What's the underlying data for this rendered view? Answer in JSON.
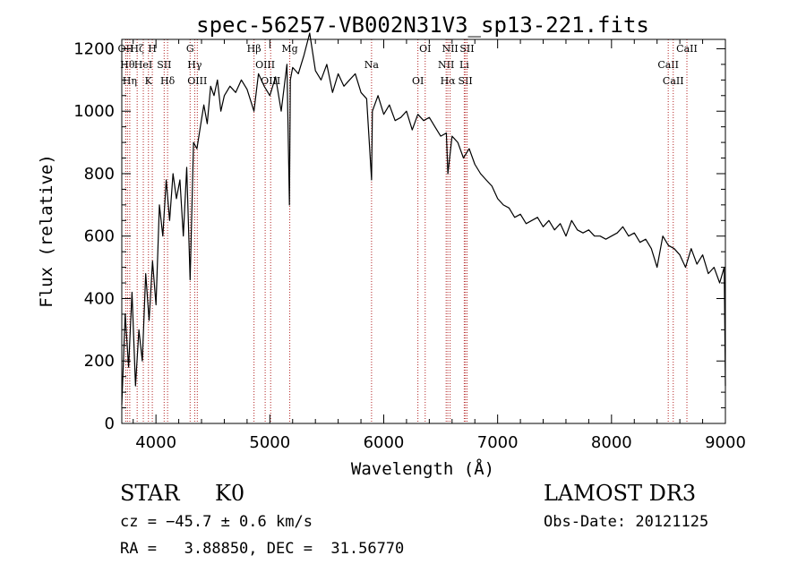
{
  "chart_data": {
    "type": "line",
    "title": "spec-56257-VB002N31V3_sp13-221.fits",
    "xlabel": "Wavelength (Å)",
    "ylabel": "Flux (relative)",
    "xlim": [
      3700,
      9000
    ],
    "ylim": [
      0,
      1230
    ],
    "xticks": [
      4000,
      5000,
      6000,
      7000,
      8000,
      9000
    ],
    "yticks": [
      0,
      200,
      400,
      600,
      800,
      1000,
      1200
    ],
    "grid": false,
    "line_color": "#000000",
    "marker_color": "#b22222",
    "series": [
      {
        "x": [
          3700,
          3730,
          3760,
          3790,
          3820,
          3850,
          3880,
          3910,
          3940,
          3970,
          4000,
          4030,
          4060,
          4090,
          4120,
          4150,
          4180,
          4210,
          4240,
          4270,
          4300,
          4330,
          4360,
          4390,
          4420,
          4450,
          4480,
          4510,
          4540,
          4570,
          4600,
          4650,
          4700,
          4750,
          4800,
          4861,
          4900,
          4950,
          5000,
          5050,
          5100,
          5150,
          5172,
          5180,
          5200,
          5250,
          5300,
          5350,
          5400,
          5450,
          5500,
          5550,
          5600,
          5650,
          5700,
          5750,
          5800,
          5850,
          5893,
          5900,
          5950,
          6000,
          6050,
          6100,
          6150,
          6200,
          6250,
          6300,
          6350,
          6400,
          6450,
          6500,
          6550,
          6563,
          6600,
          6650,
          6700,
          6750,
          6800,
          6850,
          6900,
          6950,
          7000,
          7050,
          7100,
          7150,
          7200,
          7250,
          7300,
          7350,
          7400,
          7450,
          7500,
          7550,
          7600,
          7650,
          7700,
          7750,
          7800,
          7850,
          7900,
          7950,
          8000,
          8050,
          8100,
          8150,
          8200,
          8250,
          8300,
          8350,
          8400,
          8450,
          8500,
          8550,
          8600,
          8650,
          8700,
          8750,
          8800,
          8850,
          8900,
          8950,
          8990,
          9000
        ],
        "y": [
          60,
          350,
          180,
          420,
          120,
          300,
          200,
          480,
          330,
          520,
          380,
          700,
          600,
          780,
          650,
          800,
          720,
          780,
          600,
          820,
          460,
          900,
          880,
          950,
          1020,
          960,
          1080,
          1050,
          1100,
          1000,
          1050,
          1080,
          1060,
          1100,
          1070,
          1000,
          1120,
          1080,
          1050,
          1110,
          1000,
          1150,
          700,
          1100,
          1140,
          1120,
          1180,
          1250,
          1130,
          1100,
          1150,
          1060,
          1120,
          1080,
          1100,
          1120,
          1060,
          1040,
          780,
          1000,
          1050,
          990,
          1020,
          970,
          980,
          1000,
          940,
          990,
          970,
          980,
          950,
          920,
          930,
          800,
          920,
          900,
          850,
          880,
          830,
          800,
          780,
          760,
          720,
          700,
          690,
          660,
          670,
          640,
          650,
          660,
          630,
          650,
          620,
          640,
          600,
          650,
          620,
          610,
          620,
          600,
          600,
          590,
          600,
          610,
          630,
          600,
          610,
          580,
          590,
          560,
          500,
          600,
          570,
          560,
          540,
          500,
          560,
          510,
          540,
          480,
          500,
          450,
          500,
          120
        ]
      }
    ],
    "lines": [
      {
        "x": 3734,
        "label": "OII"
      },
      {
        "x": 3750,
        "label": "Hθ"
      },
      {
        "x": 3770,
        "label": "Hη"
      },
      {
        "x": 3835,
        "label": "Hζ"
      },
      {
        "x": 3889,
        "label": "HeI"
      },
      {
        "x": 3934,
        "label": "K"
      },
      {
        "x": 3968,
        "label": "H"
      },
      {
        "x": 4072,
        "label": "SII"
      },
      {
        "x": 4102,
        "label": "Hδ"
      },
      {
        "x": 4300,
        "label": "G"
      },
      {
        "x": 4340,
        "label": "Hγ"
      },
      {
        "x": 4363,
        "label": "OIII"
      },
      {
        "x": 4861,
        "label": "Hβ"
      },
      {
        "x": 4959,
        "label": "OIII"
      },
      {
        "x": 5007,
        "label": "OIII"
      },
      {
        "x": 5175,
        "label": "Mg"
      },
      {
        "x": 5893,
        "label": "Na"
      },
      {
        "x": 6300,
        "label": "OI"
      },
      {
        "x": 6364,
        "label": "OI"
      },
      {
        "x": 6548,
        "label": "NII"
      },
      {
        "x": 6563,
        "label": "Hα"
      },
      {
        "x": 6583,
        "label": "NII"
      },
      {
        "x": 6707,
        "label": "Li"
      },
      {
        "x": 6717,
        "label": "SII"
      },
      {
        "x": 6731,
        "label": "SII"
      },
      {
        "x": 8498,
        "label": "CaII"
      },
      {
        "x": 8542,
        "label": "CaII"
      },
      {
        "x": 8662,
        "label": "CaII"
      }
    ]
  },
  "footer": {
    "class_label": "STAR",
    "subclass": "K0",
    "survey": "LAMOST DR3",
    "cz_line": "cz = −45.7 ± 0.6 km/s",
    "obs_date": "Obs-Date: 20121125",
    "coords": "RA =   3.88850, DEC =  31.56770"
  }
}
